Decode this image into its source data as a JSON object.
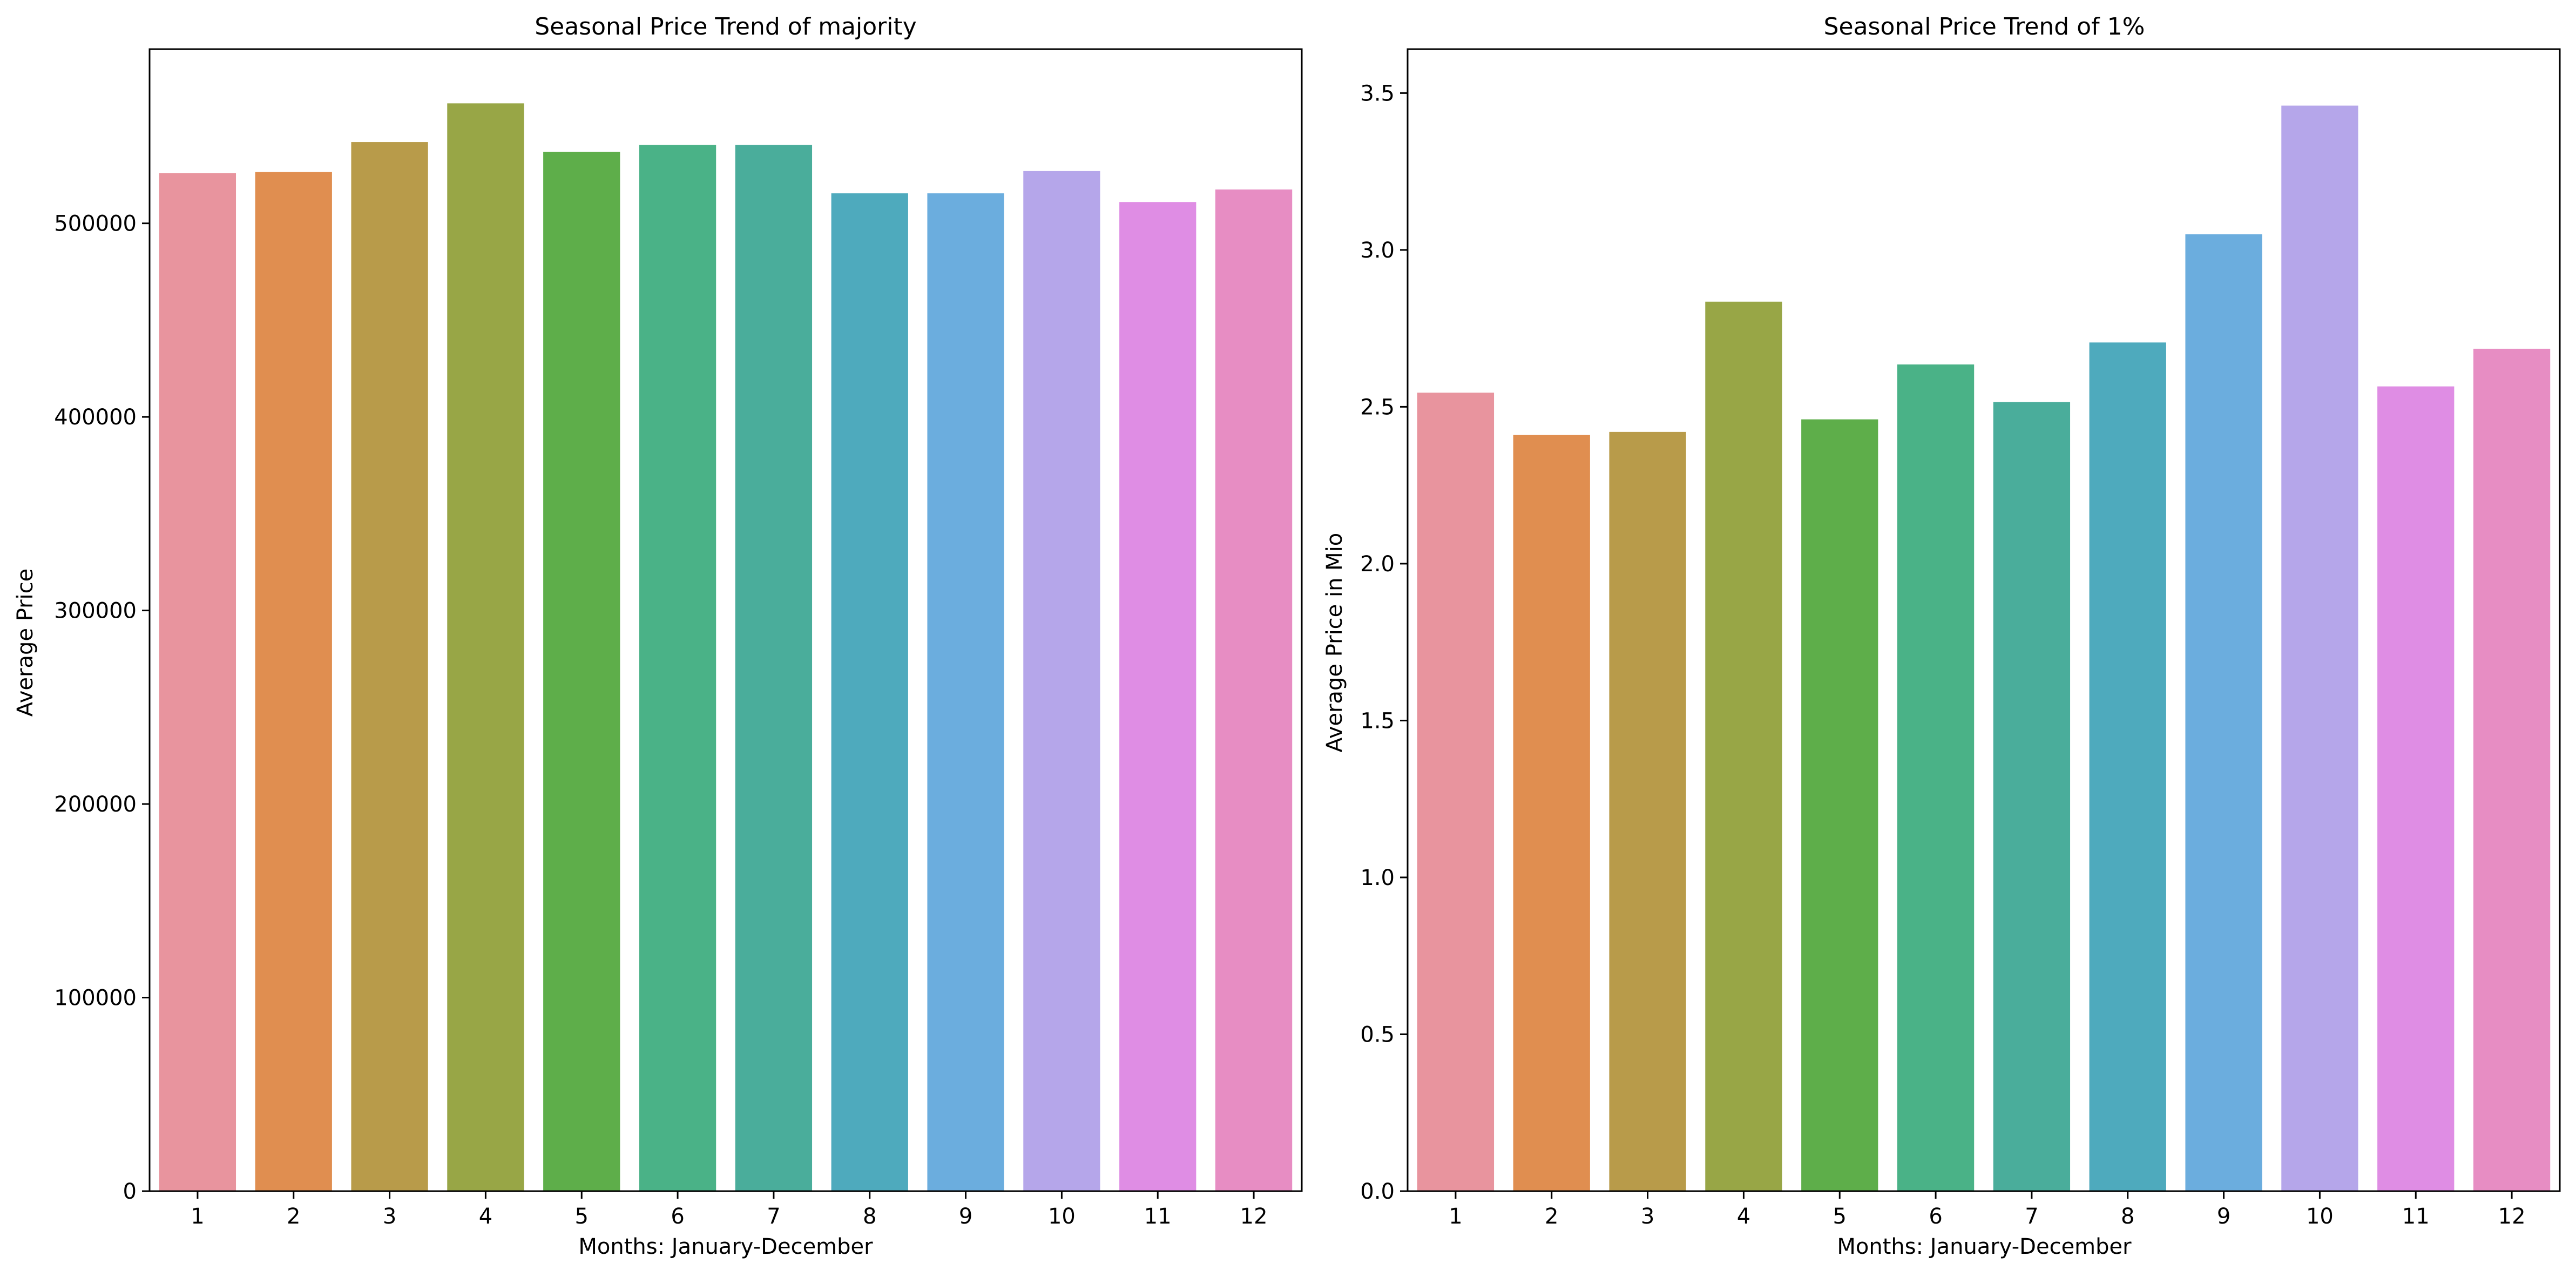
{
  "chart_data": [
    {
      "type": "bar",
      "title": "Seasonal Price Trend of majority",
      "xlabel": "Months: January-December",
      "ylabel": "Average Price",
      "categories": [
        "1",
        "2",
        "3",
        "4",
        "5",
        "6",
        "7",
        "8",
        "9",
        "10",
        "11",
        "12"
      ],
      "values": [
        526000,
        526500,
        542000,
        562000,
        537000,
        540500,
        540500,
        515500,
        515500,
        527000,
        511000,
        517500
      ],
      "ylim": [
        0,
        590000
      ],
      "yticks": [
        0,
        100000,
        200000,
        300000,
        400000,
        500000
      ],
      "ytick_labels": [
        "0",
        "100000",
        "200000",
        "300000",
        "400000",
        "500000"
      ],
      "colors": [
        "#e8949e",
        "#e08e50",
        "#b89b4a",
        "#98a646",
        "#5eae4a",
        "#4ab287",
        "#4aad9b",
        "#4eaabd",
        "#6badde",
        "#b5a6ea",
        "#df8de4",
        "#e78dc3"
      ],
      "grid": false,
      "legend": "none"
    },
    {
      "type": "bar",
      "title": "Seasonal Price Trend of 1%",
      "xlabel": "Months: January-December",
      "ylabel": "Average Price in Mio",
      "categories": [
        "1",
        "2",
        "3",
        "4",
        "5",
        "6",
        "7",
        "8",
        "9",
        "10",
        "11",
        "12"
      ],
      "values": [
        2.545,
        2.41,
        2.42,
        2.835,
        2.46,
        2.635,
        2.515,
        2.705,
        3.05,
        3.46,
        2.565,
        2.685
      ],
      "ylim": [
        0,
        3.64
      ],
      "yticks": [
        0,
        0.5,
        1.0,
        1.5,
        2.0,
        2.5,
        3.0,
        3.5
      ],
      "ytick_labels": [
        "0.0",
        "0.5",
        "1.0",
        "1.5",
        "2.0",
        "2.5",
        "3.0",
        "3.5"
      ],
      "colors": [
        "#e8949e",
        "#e08e50",
        "#b89b4a",
        "#98a646",
        "#5eae4a",
        "#4ab287",
        "#4aad9b",
        "#4eaabd",
        "#6badde",
        "#b5a6ea",
        "#df8de4",
        "#e78dc3"
      ],
      "grid": false,
      "legend": "none"
    }
  ]
}
